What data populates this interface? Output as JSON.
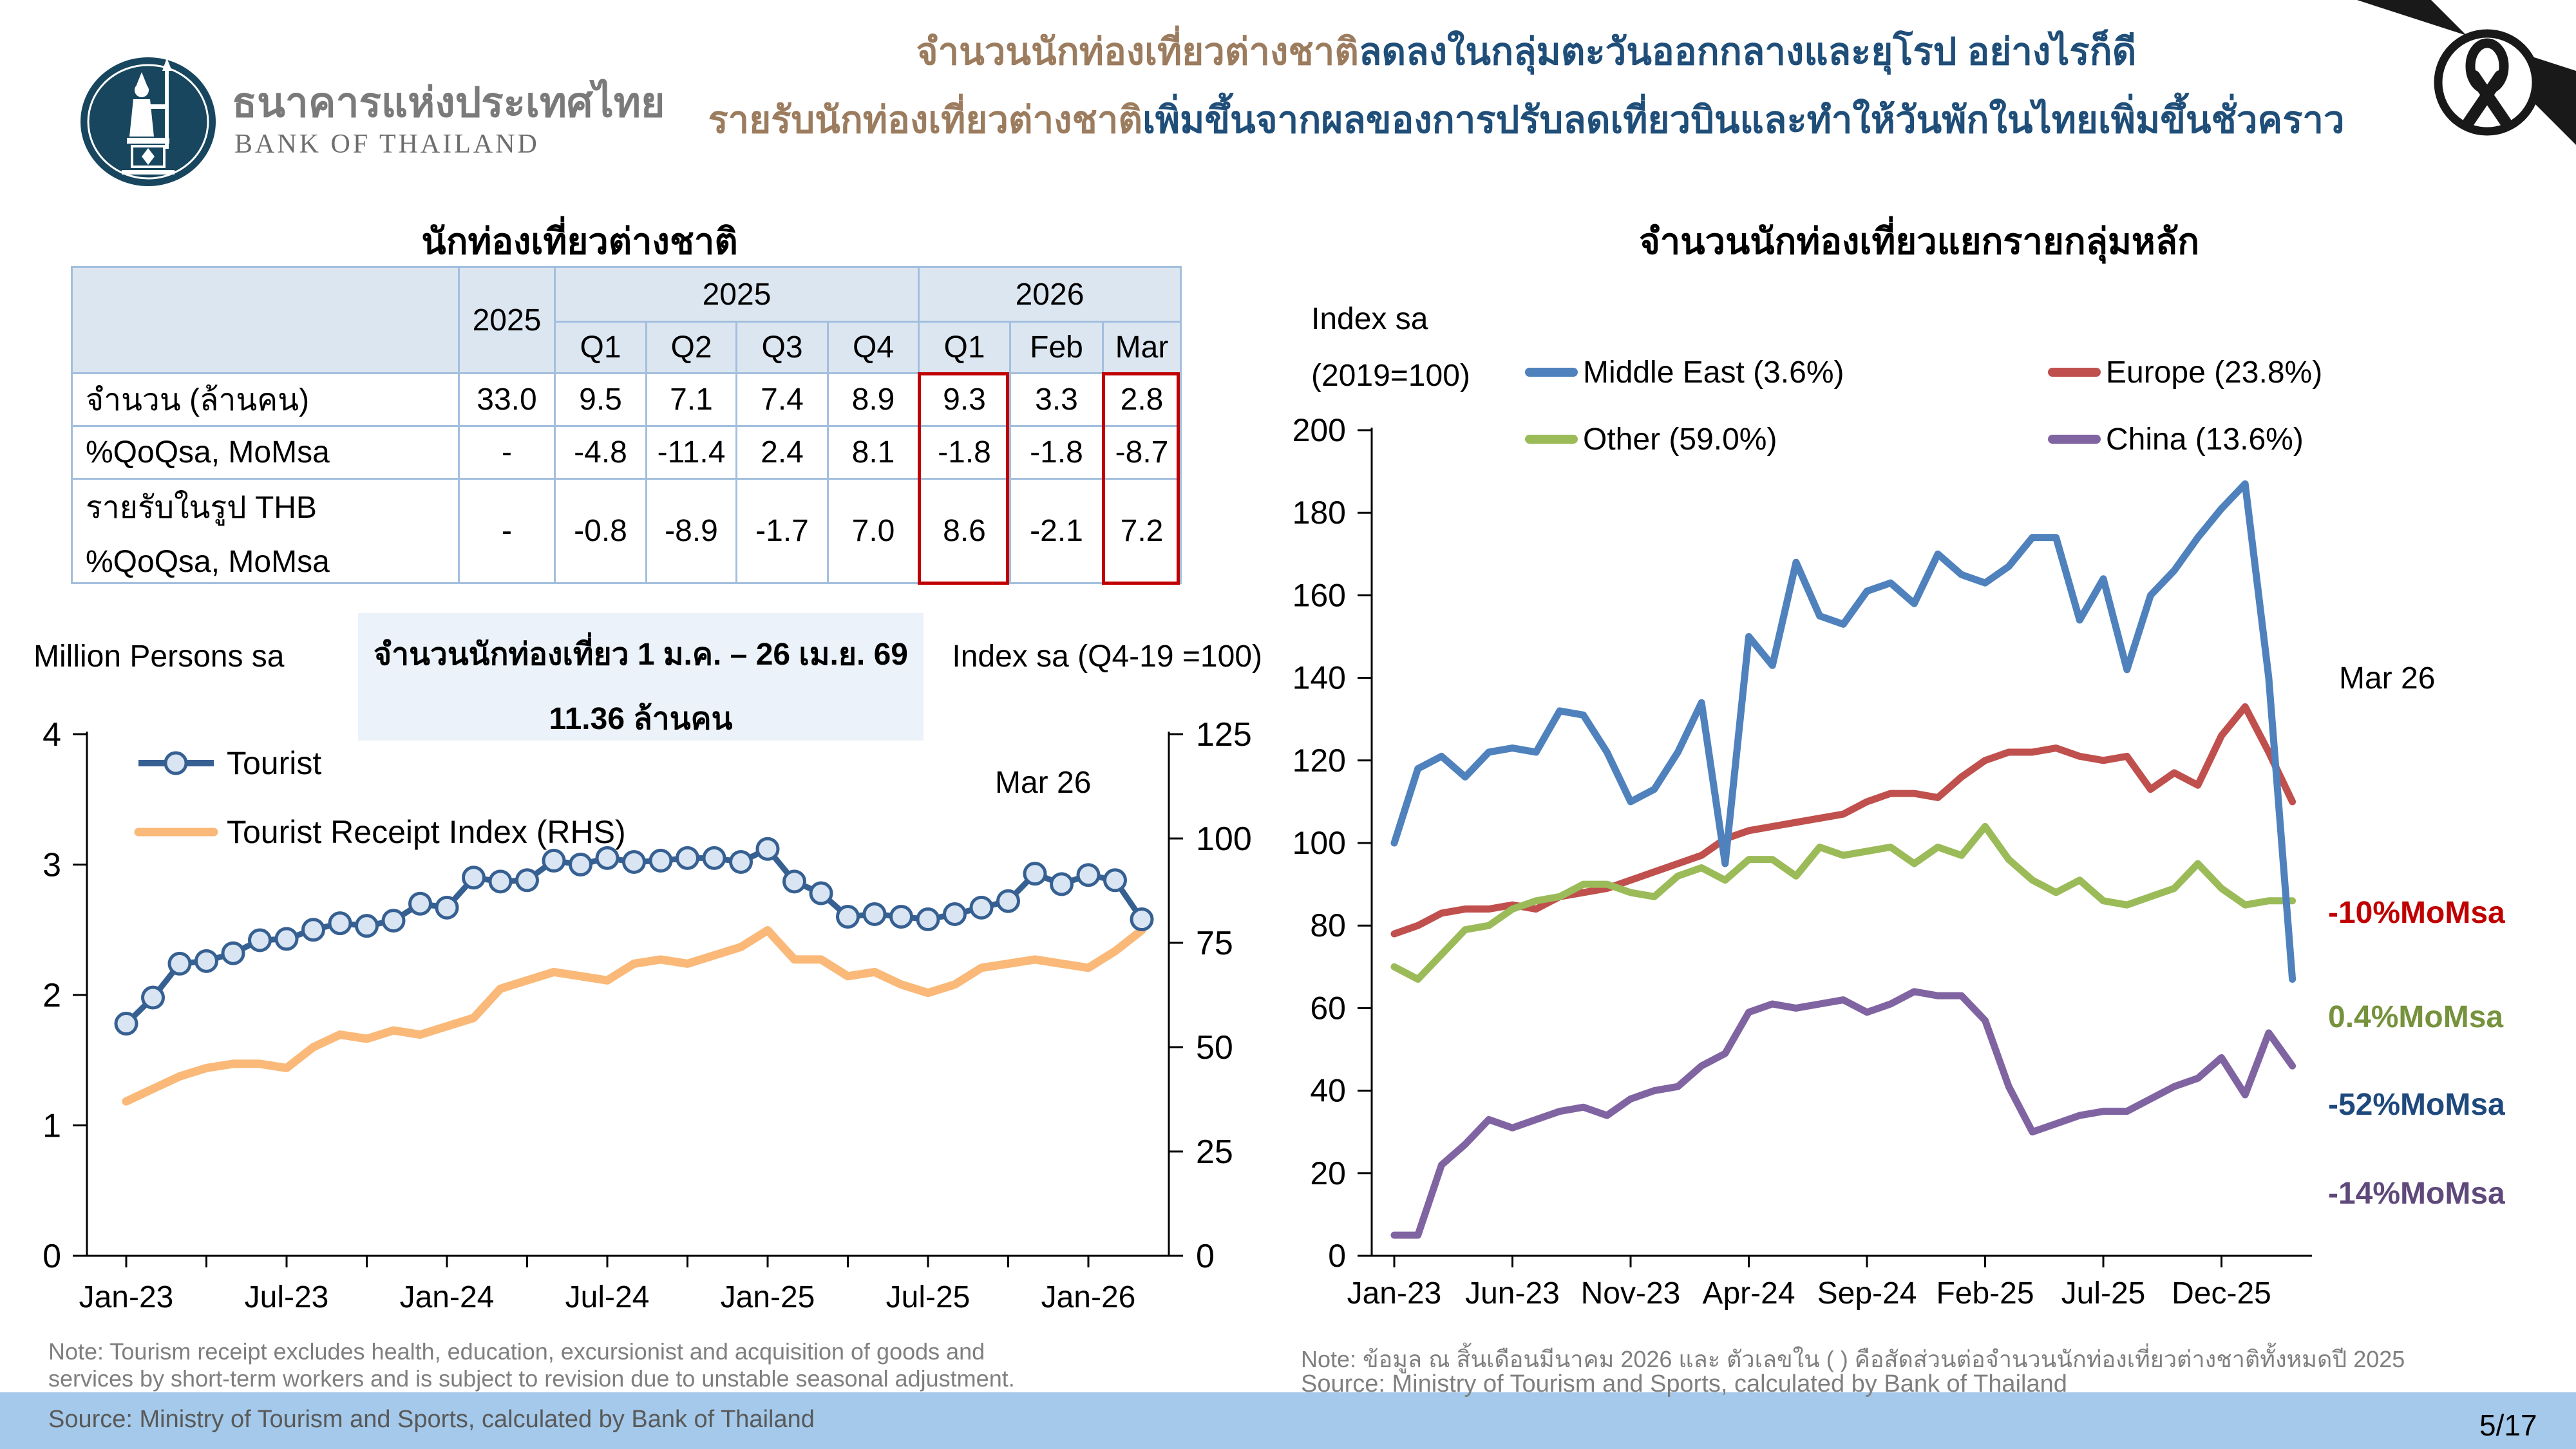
{
  "slide": {
    "page_number": "5/17"
  },
  "logo": {
    "org_name_thai": "ธนาคารแห่งประเทศไทย",
    "org_name_en": "BANK OF THAILAND"
  },
  "headline": {
    "line1_brown": "จำนวนนักท่องเที่ยวต่างชาติ",
    "line1_blue": "ลดลงในกลุ่มตะวันออกกลางและยุโรป อย่างไรก็ดี",
    "line2_brown": "รายรับนักท่องเที่ยวต่างชาติ",
    "line2_blue": "เพิ่มขึ้นจากผลของการปรับลดเที่ยวบินและทำให้วันพักในไทยเพิ่มขึ้นชั่วคราว"
  },
  "colors": {
    "header_brown": "#9c7c5e",
    "header_blue": "#1f4e79",
    "table_header_bg": "#dce6f1",
    "table_border": "#a3bfdd",
    "table_highlight": "#c00000",
    "annotation_box_bg": "#ebf2f9",
    "bottom_bar": "#a4c9ea",
    "logo_navy": "#17465e",
    "ribbon_black": "#191919"
  },
  "table": {
    "header": {
      "annual_label": "2025",
      "groups": [
        {
          "label": "2025",
          "colspan": 4
        },
        {
          "label": "2026",
          "colspan": 3
        }
      ],
      "sub_columns": [
        "Q1",
        "Q2",
        "Q3",
        "Q4",
        "Q1",
        "Feb",
        "Mar"
      ]
    },
    "rows": [
      {
        "label_lines": [
          "จำนวน (ล้านคน)"
        ],
        "values": [
          "33.0",
          "9.5",
          "7.1",
          "7.4",
          "8.9",
          "9.3",
          "3.3",
          "2.8"
        ]
      },
      {
        "label_lines": [
          "%QoQsa, MoMsa"
        ],
        "values": [
          "-",
          "-4.8",
          "-11.4",
          "2.4",
          "8.1",
          "-1.8",
          "-1.8",
          "-8.7"
        ]
      },
      {
        "label_lines": [
          "รายรับในรูป THB",
          "%QoQsa, MoMsa"
        ],
        "values": [
          "-",
          "-0.8",
          "-8.9",
          "-1.7",
          "7.0",
          "8.6",
          "-2.1",
          "7.2"
        ]
      }
    ],
    "highlighted_sub_columns": [
      "Q1 (2026)",
      "Mar (2026)"
    ]
  },
  "months": [
    "Jan-23",
    "Feb-23",
    "Mar-23",
    "Apr-23",
    "May-23",
    "Jun-23",
    "Jul-23",
    "Aug-23",
    "Sep-23",
    "Oct-23",
    "Nov-23",
    "Dec-23",
    "Jan-24",
    "Feb-24",
    "Mar-24",
    "Apr-24",
    "May-24",
    "Jun-24",
    "Jul-24",
    "Aug-24",
    "Sep-24",
    "Oct-24",
    "Nov-24",
    "Dec-24",
    "Jan-25",
    "Feb-25",
    "Mar-25",
    "Apr-25",
    "May-25",
    "Jun-25",
    "Jul-25",
    "Aug-25",
    "Sep-25",
    "Oct-25",
    "Nov-25",
    "Dec-25",
    "Jan-26",
    "Feb-26",
    "Mar-26"
  ],
  "chart_data": [
    {
      "id": "tourist-vs-receipt",
      "type": "line",
      "title": "นักท่องเที่ยวต่างชาติ",
      "ylabel_left": "Million Persons sa",
      "ylabel_right": "Index sa (Q4-19 =100)",
      "ylim_left": [
        0,
        4
      ],
      "ylim_right": [
        0,
        125
      ],
      "y_ticks_left": [
        0,
        1,
        2,
        3,
        4
      ],
      "y_ticks_right": [
        0,
        25,
        50,
        75,
        100,
        125
      ],
      "x_tick_labels": [
        {
          "index": 0,
          "label": "Jan-23"
        },
        {
          "index": 6,
          "label": "Jul-23"
        },
        {
          "index": 12,
          "label": "Jan-24"
        },
        {
          "index": 18,
          "label": "Jul-24"
        },
        {
          "index": 24,
          "label": "Jan-25"
        },
        {
          "index": 30,
          "label": "Jul-25"
        },
        {
          "index": 36,
          "label": "Jan-26"
        }
      ],
      "minor_tick_every": 3,
      "grid": false,
      "legend_position": "inside-top-left",
      "end_label": "Mar 26",
      "annotation_box": {
        "line1": "จำนวนนักท่องเที่ยว 1 ม.ค. – 26 เม.ย. 69",
        "line2": "11.36 ล้านคน"
      },
      "series": [
        {
          "name": "Tourist",
          "axis": "left",
          "color": "#376092",
          "marker_fill": "#d9e5f3",
          "values": [
            1.78,
            1.98,
            2.24,
            2.26,
            2.32,
            2.42,
            2.43,
            2.5,
            2.55,
            2.53,
            2.57,
            2.7,
            2.67,
            2.9,
            2.87,
            2.88,
            3.03,
            3.0,
            3.05,
            3.02,
            3.03,
            3.05,
            3.05,
            3.02,
            3.12,
            2.87,
            2.78,
            2.6,
            2.62,
            2.6,
            2.58,
            2.62,
            2.67,
            2.72,
            2.93,
            2.85,
            2.92,
            2.88,
            2.58
          ]
        },
        {
          "name": "Tourist Receipt Index (RHS)",
          "axis": "right",
          "color": "#fab978",
          "values": [
            37,
            40,
            43,
            45,
            46,
            46,
            45,
            50,
            53,
            52,
            54,
            53,
            55,
            57,
            64,
            66,
            68,
            67,
            66,
            70,
            71,
            70,
            72,
            74,
            78,
            71,
            71,
            67,
            68,
            65,
            63,
            65,
            69,
            70,
            71,
            70,
            69,
            73,
            78
          ]
        }
      ]
    },
    {
      "id": "tourist-groups",
      "type": "line",
      "title": "จำนวนนักท่องเที่ยวแยกรายกลุ่มหลัก",
      "ylabel_line1": "Index sa",
      "ylabel_line2": "(2019=100)",
      "ylim": [
        0,
        200
      ],
      "y_ticks": [
        0,
        20,
        40,
        60,
        80,
        100,
        120,
        140,
        160,
        180,
        200
      ],
      "x_tick_labels": [
        {
          "index": 0,
          "label": "Jan-23"
        },
        {
          "index": 5,
          "label": "Jun-23"
        },
        {
          "index": 10,
          "label": "Nov-23"
        },
        {
          "index": 15,
          "label": "Apr-24"
        },
        {
          "index": 20,
          "label": "Sep-24"
        },
        {
          "index": 25,
          "label": "Feb-25"
        },
        {
          "index": 30,
          "label": "Jul-25"
        },
        {
          "index": 35,
          "label": "Dec-25"
        }
      ],
      "grid": false,
      "legend_position": "top",
      "end_label": "Mar 26",
      "series": [
        {
          "name": "Middle East (3.6%)",
          "color": "#4f81bd",
          "values": [
            100,
            118,
            121,
            116,
            122,
            123,
            122,
            132,
            131,
            122,
            110,
            113,
            122,
            134,
            95,
            150,
            143,
            168,
            155,
            153,
            161,
            163,
            158,
            170,
            165,
            163,
            167,
            174,
            174,
            154,
            164,
            142,
            160,
            166,
            174,
            181,
            187,
            140,
            67
          ]
        },
        {
          "name": "Europe (23.8%)",
          "color": "#c0504d",
          "values": [
            78,
            80,
            83,
            84,
            84,
            85,
            84,
            87,
            88,
            89,
            91,
            93,
            95,
            97,
            101,
            103,
            104,
            105,
            106,
            107,
            110,
            112,
            112,
            111,
            116,
            120,
            122,
            122,
            123,
            121,
            120,
            121,
            113,
            117,
            114,
            126,
            133,
            122,
            110
          ]
        },
        {
          "name": "Other (59.0%)",
          "color": "#9bbb59",
          "values": [
            70,
            67,
            73,
            79,
            80,
            84,
            86,
            87,
            90,
            90,
            88,
            87,
            92,
            94,
            91,
            96,
            96,
            92,
            99,
            97,
            98,
            99,
            95,
            99,
            97,
            104,
            96,
            91,
            88,
            91,
            86,
            85,
            87,
            89,
            95,
            89,
            85,
            86,
            86
          ]
        },
        {
          "name": "China (13.6%)",
          "color": "#8064a2",
          "values": [
            5,
            5,
            22,
            27,
            33,
            31,
            33,
            35,
            36,
            34,
            38,
            40,
            41,
            46,
            49,
            59,
            61,
            60,
            61,
            62,
            59,
            61,
            64,
            63,
            63,
            57,
            41,
            30,
            32,
            34,
            35,
            35,
            38,
            41,
            43,
            48,
            39,
            54,
            46
          ]
        }
      ],
      "annotations": [
        {
          "label": "-10%MoMsa",
          "series": "Europe (23.8%)",
          "color": "#c00000"
        },
        {
          "label": "0.4%MoMsa",
          "series": "Other (59.0%)",
          "color": "#76923c"
        },
        {
          "label": "-52%MoMsa",
          "series": "Middle East (3.6%)",
          "color": "#1f497d"
        },
        {
          "label": "-14%MoMsa",
          "series": "China (13.6%)",
          "color": "#5f497a"
        }
      ]
    }
  ],
  "notes": {
    "left_note_line1": "Note: Tourism receipt excludes health, education, excursionist and acquisition of goods and",
    "left_note_line2": "services by short-term workers and is subject to revision due to unstable seasonal adjustment.",
    "left_source": "Source: Ministry of Tourism and Sports, calculated by Bank of Thailand",
    "right_note": "Note: ข้อมูล ณ สิ้นเดือนมีนาคม 2026 และ ตัวเลขใน ( ) คือสัดส่วนต่อจำนวนนักท่องเที่ยวต่างชาติทั้งหมดปี 2025",
    "right_source": "Source: Ministry of Tourism and Sports, calculated by Bank of Thailand"
  }
}
